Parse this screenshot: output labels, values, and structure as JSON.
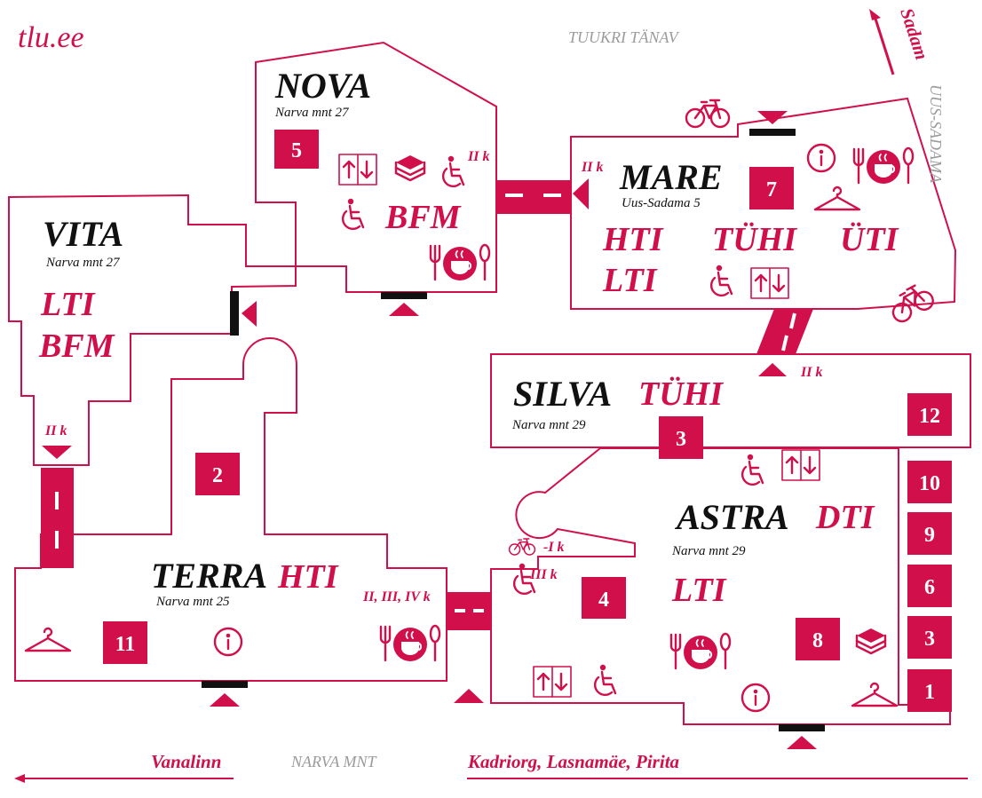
{
  "site": "tlu.ee",
  "accent_color": "#d1104b",
  "street_color": "#9b9b9b",
  "streets": {
    "top": "TUUKRI TÄNAV",
    "right": "UUS-SADAMA",
    "bottom": "NARVA MNT"
  },
  "directions": {
    "harbour": "Sadam",
    "old_town": "Vanalinn",
    "east": "Kadriorg, Lasnamäe, Pirita"
  },
  "buildings": {
    "nova": {
      "name": "NOVA",
      "address": "Narva mnt 27",
      "institutes": [
        "BFM"
      ]
    },
    "vita": {
      "name": "VITA",
      "address": "Narva mnt 27",
      "institutes": [
        "LTI",
        "BFM"
      ]
    },
    "mare": {
      "name": "MARE",
      "address": "Uus-Sadama 5",
      "institutes": [
        "HTI",
        "TÜHI",
        "ÜTI",
        "LTI"
      ]
    },
    "silva": {
      "name": "SILVA",
      "address": "Narva mnt 29",
      "institutes": [
        "TÜHI"
      ]
    },
    "terra": {
      "name": "TERRA",
      "address": "Narva mnt 25",
      "institutes": [
        "HTI"
      ]
    },
    "astra": {
      "name": "ASTRA",
      "address": "Narva mnt 29",
      "institutes": [
        "DTI",
        "LTI"
      ]
    }
  },
  "room_numbers": {
    "nova": "5",
    "mare": "7",
    "terra_wing": "2",
    "terra": "11",
    "silva_right": "12",
    "silva_connector": "3",
    "astra_center": "4",
    "astra_library": "8",
    "astra_column": [
      "10",
      "9",
      "6",
      "3",
      "1"
    ]
  },
  "floor_labels": {
    "nova_bridge": "II k",
    "mare_bridge": "II k",
    "vita_bridge": "II k",
    "silva_bridge": "II k",
    "terra_cafe": "II, III, IV k",
    "astra_bikes": "-I k",
    "astra_access": "III k"
  }
}
